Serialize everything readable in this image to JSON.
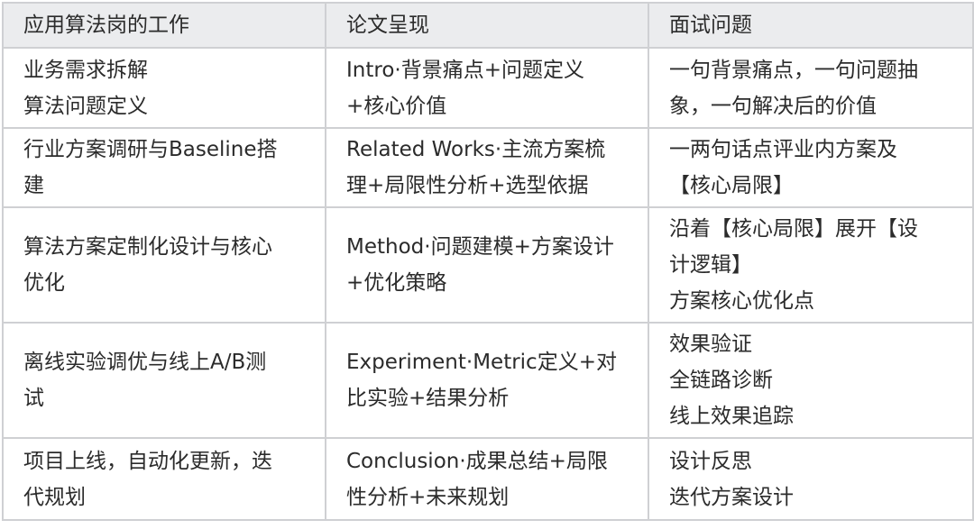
{
  "headers": [
    "应用算法岗的工作",
    "论文呈现",
    "面试问题"
  ],
  "rows": [
    [
      "业务需求拆解\n算法问题定义",
      "Intro·背景痛点+问题定义\n+核心价值",
      "一句背景痛点，一句问题抽\n象，一句解决后的价值"
    ],
    [
      "行业方案调研与Baseline搭\n建",
      "Related Works·主流方案梳\n理+局限性分析+选型依据",
      "一两句话点评业内方案及\n【核心局限】"
    ],
    [
      "算法方案定制化设计与核心\n优化",
      "Method·问题建模+方案设计\n+优化策略",
      "沿着【核心局限】展开【设\n计逻辑】\n方案核心优化点"
    ],
    [
      "离线实验调优与线上A/B测\n试",
      "Experiment·Metric定义+对\n比实验+结果分析",
      "效果验证\n全链路诊断\n线上效果追踪"
    ],
    [
      "项目上线，自动化更新，迭\n代规划",
      "Conclusion·成果总结+局限\n性分析+未来规划",
      "设计反思\n迭代方案设计"
    ]
  ]
}
